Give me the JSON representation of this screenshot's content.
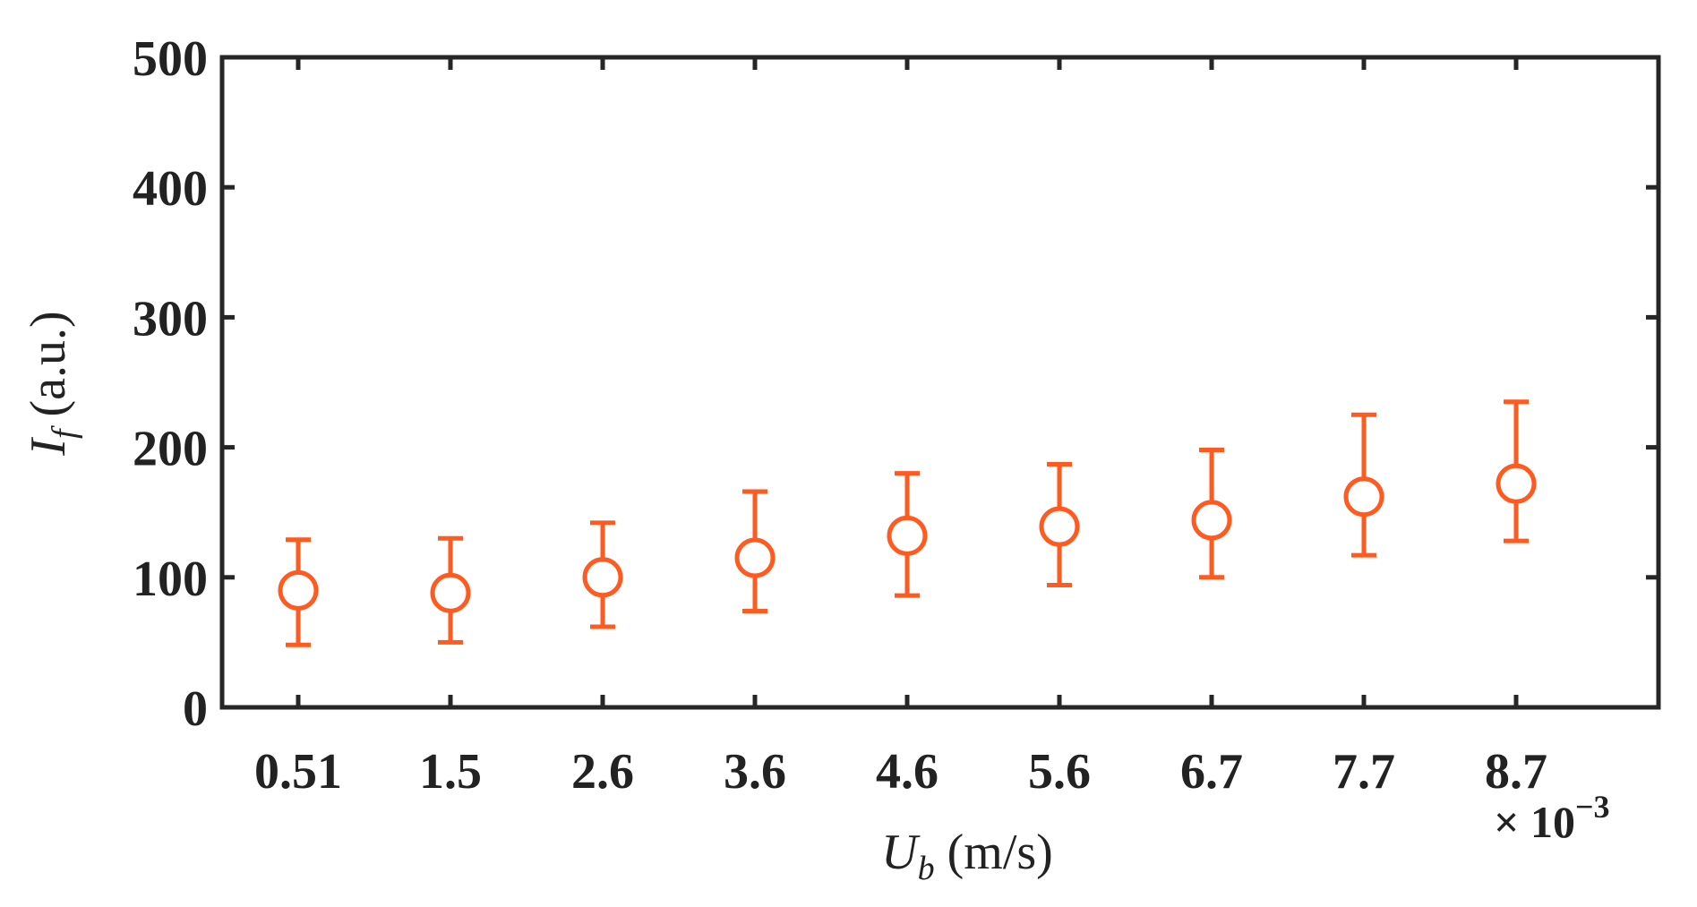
{
  "chart_data": {
    "type": "scatter",
    "marker": "open-circle",
    "error_bars": true,
    "categories": [
      "0.51",
      "1.5",
      "2.6",
      "3.6",
      "4.6",
      "5.6",
      "6.7",
      "7.7",
      "8.7"
    ],
    "series": [
      {
        "values": [
          90,
          88,
          100,
          115,
          132,
          139,
          144,
          162,
          172
        ],
        "error_low": [
          48,
          50,
          62,
          74,
          86,
          94,
          100,
          117,
          128
        ],
        "error_high": [
          129,
          130,
          142,
          166,
          180,
          187,
          198,
          225,
          235
        ],
        "color": "#ff5a1f"
      }
    ],
    "xlabel": {
      "symbol": "U",
      "subscript": "b",
      "unit": " (m/s)"
    },
    "x_multiplier": {
      "prefix": "× 10",
      "exponent": "−3"
    },
    "ylabel": {
      "symbol": "I",
      "subscript": "f",
      "unit": " (a.u.)"
    },
    "ylim": [
      0,
      500
    ],
    "yticks": [
      "0",
      "100",
      "200",
      "300",
      "400",
      "500"
    ],
    "grid": false,
    "axis_color": "#262626"
  }
}
